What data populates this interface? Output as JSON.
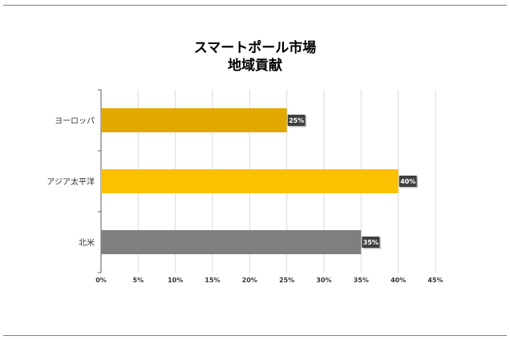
{
  "chart_data": {
    "type": "bar",
    "orientation": "horizontal",
    "title": "スマートポール市場",
    "subtitle": "地域貢献",
    "categories": [
      "ヨーロッパ",
      "アジア太平洋",
      "北米"
    ],
    "values": [
      25,
      40,
      35
    ],
    "data_labels": [
      "25%",
      "40%",
      "35%"
    ],
    "bar_colors": [
      "#E1A800",
      "#FBC000",
      "#7F7F7F"
    ],
    "xlim": [
      0,
      45
    ],
    "x_ticks": [
      0,
      5,
      10,
      15,
      20,
      25,
      30,
      35,
      40,
      45
    ],
    "x_tick_labels": [
      "0%",
      "5%",
      "10%",
      "15%",
      "20%",
      "25%",
      "30%",
      "35%",
      "40%",
      "45%"
    ],
    "grid": "vertical",
    "legend": "none"
  }
}
